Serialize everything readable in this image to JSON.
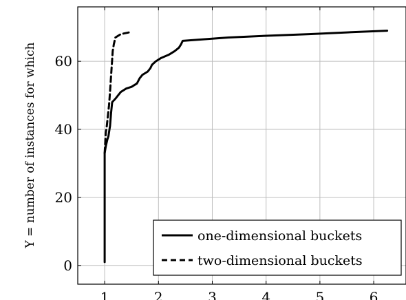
{
  "chart_data": {
    "type": "line",
    "title": "",
    "xlabel": "",
    "ylabel": "Y = number of instances for which",
    "xlim": [
      0.5,
      6.6
    ],
    "ylim": [
      -5.5,
      76
    ],
    "xticks": [
      1,
      2,
      3,
      4,
      5,
      6
    ],
    "yticks": [
      0,
      20,
      40,
      60
    ],
    "xtick_labels": [
      "1",
      "2",
      "3",
      "4",
      "5",
      "6"
    ],
    "ytick_labels": [
      "0",
      "20",
      "40",
      "60"
    ],
    "grid": true,
    "legend_position": "bottom-right",
    "series": [
      {
        "name": "one-dimensional buckets",
        "style": "solid",
        "color": "#000000",
        "x": [
          1.0,
          1.0,
          1.0,
          1.0,
          1.02,
          1.05,
          1.07,
          1.09,
          1.1,
          1.12,
          1.14,
          1.2,
          1.25,
          1.3,
          1.4,
          1.5,
          1.6,
          1.65,
          1.7,
          1.8,
          1.85,
          1.88,
          1.95,
          2.05,
          2.2,
          2.3,
          2.38,
          2.42,
          2.45,
          2.6,
          3.3,
          4.0,
          4.8,
          5.5,
          6.25
        ],
        "y": [
          1,
          20,
          30,
          33,
          35,
          37,
          38,
          40,
          41,
          45,
          48,
          49,
          50,
          51,
          52,
          52.5,
          53.5,
          55,
          56,
          57,
          58,
          59,
          60,
          61,
          62,
          63,
          64,
          65,
          66,
          66.2,
          67,
          67.5,
          68,
          68.5,
          69
        ]
      },
      {
        "name": "two-dimensional buckets",
        "style": "dashed",
        "color": "#000000",
        "x": [
          1.0,
          1.01,
          1.02,
          1.04,
          1.06,
          1.08,
          1.1,
          1.12,
          1.15,
          1.17,
          1.2,
          1.3,
          1.45,
          1.5
        ],
        "y": [
          33,
          36,
          39,
          41,
          44,
          47,
          51,
          56,
          63,
          65,
          67,
          68,
          68.5,
          69
        ]
      }
    ]
  }
}
